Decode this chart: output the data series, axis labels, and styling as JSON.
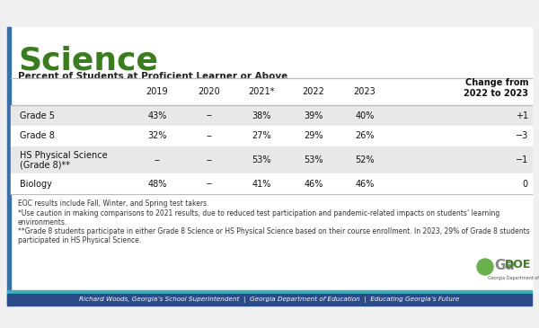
{
  "title": "Science",
  "subtitle": "Percent of Students at Proficient Learner or Above",
  "columns": [
    "",
    "2019",
    "2020",
    "2021*",
    "2022",
    "2023",
    "Change from\n2022 to 2023"
  ],
  "rows": [
    [
      "Grade 5",
      "43%",
      "--",
      "38%",
      "39%",
      "40%",
      "+1"
    ],
    [
      "Grade 8",
      "32%",
      "--",
      "27%",
      "29%",
      "26%",
      "−3"
    ],
    [
      "HS Physical Science\n(Grade 8)**",
      "--",
      "--",
      "53%",
      "53%",
      "52%",
      "−1"
    ],
    [
      "Biology",
      "48%",
      "--",
      "41%",
      "46%",
      "46%",
      "0"
    ]
  ],
  "footnotes": [
    "EOC results include Fall, Winter, and Spring test takers.",
    "*Use caution in making comparisons to 2021 results, due to reduced test participation and pandemic-related impacts on students’ learning environments.",
    "**Grade 8 students participate in either Grade 8 Science or HS Physical Science based on their course enrollment. In 2023, 29% of Grade 8 students participated in HS Physical Science."
  ],
  "footer_text": "Richard Woods, Georgia’s School Superintendent  |  Georgia Department of Education  |  Educating Georgia’s Future",
  "title_color": "#3a7d1e",
  "row_bg_shaded": "#e8e8e8",
  "row_bg_white": "#ffffff",
  "border_color": "#bbbbbb",
  "footer_bg": "#2b4a8a",
  "teal_color": "#3ab0b8",
  "footer_text_color": "#ffffff",
  "bg_color": "#f0f0f0",
  "left_stripe_color": "#3a6fa8"
}
